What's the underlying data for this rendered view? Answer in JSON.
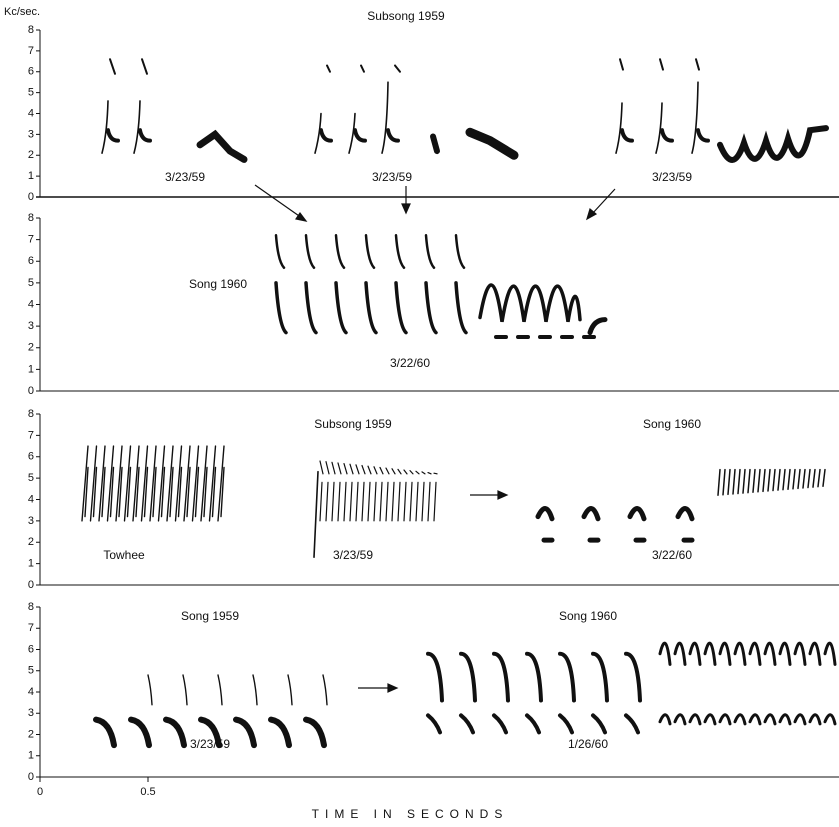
{
  "y_unit_label": "Kc/sec.",
  "panels": [
    {
      "yticks": [
        0,
        1,
        2,
        3,
        4,
        5,
        6,
        7,
        8
      ],
      "labels": [
        "Subsong 1959",
        "3/23/59",
        "3/23/59",
        "3/23/59"
      ]
    },
    {
      "yticks": [
        0,
        1,
        2,
        3,
        4,
        5,
        6,
        7,
        8
      ],
      "labels": [
        "Song 1960",
        "3/22/60"
      ]
    },
    {
      "yticks": [
        0,
        1,
        2,
        3,
        4,
        5,
        6,
        7,
        8
      ],
      "labels": [
        "Subsong 1959",
        "Song 1960",
        "Towhee",
        "3/23/59",
        "3/22/60"
      ]
    },
    {
      "yticks": [
        0,
        1,
        2,
        3,
        4,
        5,
        6,
        7,
        8
      ],
      "labels": [
        "Song 1959",
        "Song 1960",
        "3/23/59",
        "1/26/60"
      ]
    }
  ],
  "x_axis": {
    "ticks": [
      0,
      0.5
    ],
    "title": "TIME IN SECONDS"
  }
}
